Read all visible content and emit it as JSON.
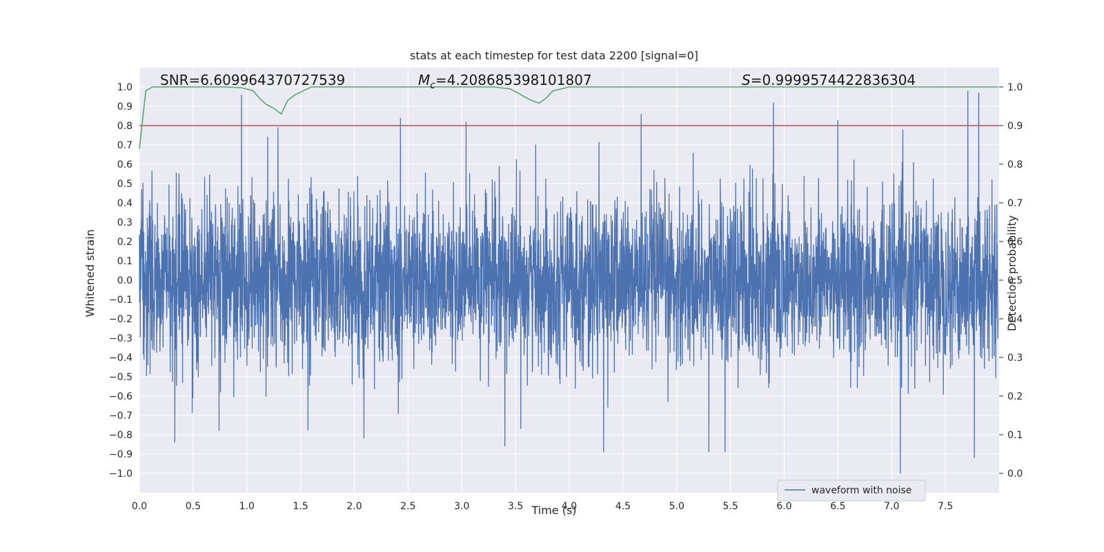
{
  "chart_data": {
    "type": "line",
    "title": "stats at each timestep for test data 2200 [signal=0]",
    "xlabel": "Time (s)",
    "ylabel": "Whitened strain",
    "y2label": "Detection probability",
    "xlim": [
      0,
      8
    ],
    "ylim": [
      -1.1,
      1.1
    ],
    "y2lim": [
      -0.05,
      1.05
    ],
    "xticks": [
      "0.0",
      "0.5",
      "1.0",
      "1.5",
      "2.0",
      "2.5",
      "3.0",
      "3.5",
      "4.0",
      "4.5",
      "5.0",
      "5.5",
      "6.0",
      "6.5",
      "7.0",
      "7.5"
    ],
    "yticks": [
      "1.0",
      "0.9",
      "0.8",
      "0.7",
      "0.6",
      "0.5",
      "0.4",
      "0.3",
      "0.2",
      "0.1",
      "0.0",
      "−0.1",
      "−0.2",
      "−0.3",
      "−0.4",
      "−0.5",
      "−0.6",
      "−0.7",
      "−0.8",
      "−0.9",
      "−1.0"
    ],
    "y2ticks": [
      "1.0",
      "0.9",
      "0.8",
      "0.7",
      "0.6",
      "0.5",
      "0.4",
      "0.3",
      "0.2",
      "0.1",
      "0.0"
    ],
    "grid": true,
    "legend": {
      "position": "lower-right",
      "entries": [
        "waveform with noise"
      ]
    },
    "annotations": {
      "snr": "SNR=6.609964370727539",
      "mc_symbol": "M",
      "mc_sub": "c",
      "mc_value": "=4.208685398101807",
      "s_symbol": "S",
      "s_value": "=0.9999574422836304"
    },
    "series": [
      {
        "name": "waveform with noise",
        "axis": "left",
        "color": "#4c72b0",
        "description_of_values": "dense noise, ~4096 samples over 8 s",
        "notable_peaks": [
          {
            "x": 0.95,
            "y": 0.96
          },
          {
            "x": 1.29,
            "y": 0.79
          },
          {
            "x": 2.43,
            "y": 0.84
          },
          {
            "x": 3.04,
            "y": 0.82
          },
          {
            "x": 4.67,
            "y": 0.86
          },
          {
            "x": 5.9,
            "y": 0.92
          },
          {
            "x": 6.5,
            "y": 0.83
          },
          {
            "x": 7.71,
            "y": 0.98
          },
          {
            "x": 7.81,
            "y": 0.97
          },
          {
            "x": 0.33,
            "y": -0.84
          },
          {
            "x": 2.09,
            "y": -0.82
          },
          {
            "x": 3.4,
            "y": -0.86
          },
          {
            "x": 4.32,
            "y": -0.89
          },
          {
            "x": 5.3,
            "y": -0.89
          },
          {
            "x": 5.45,
            "y": -0.89
          },
          {
            "x": 7.08,
            "y": -1.0
          },
          {
            "x": 7.77,
            "y": -0.92
          }
        ]
      },
      {
        "name": "",
        "axis": "right",
        "color": "#55a868",
        "x": [
          0.0,
          0.06,
          0.12,
          0.2,
          0.4,
          0.6,
          0.8,
          0.95,
          1.06,
          1.12,
          1.18,
          1.25,
          1.32,
          1.38,
          1.45,
          1.6,
          2.0,
          2.5,
          3.0,
          3.3,
          3.45,
          3.52,
          3.58,
          3.65,
          3.72,
          3.78,
          3.85,
          4.0,
          5.0,
          6.0,
          7.0,
          7.99
        ],
        "y": [
          0.84,
          0.99,
          1.0,
          1.0,
          1.0,
          1.0,
          1.0,
          0.998,
          0.99,
          0.97,
          0.955,
          0.945,
          0.93,
          0.965,
          0.98,
          1.0,
          1.0,
          1.0,
          1.0,
          1.0,
          0.995,
          0.985,
          0.975,
          0.965,
          0.958,
          0.97,
          0.99,
          1.0,
          1.0,
          1.0,
          1.0,
          1.0
        ]
      },
      {
        "name": "",
        "axis": "right",
        "color": "#c44e52",
        "x": [
          0.0,
          8.0
        ],
        "y": [
          0.9,
          0.9
        ]
      }
    ]
  }
}
